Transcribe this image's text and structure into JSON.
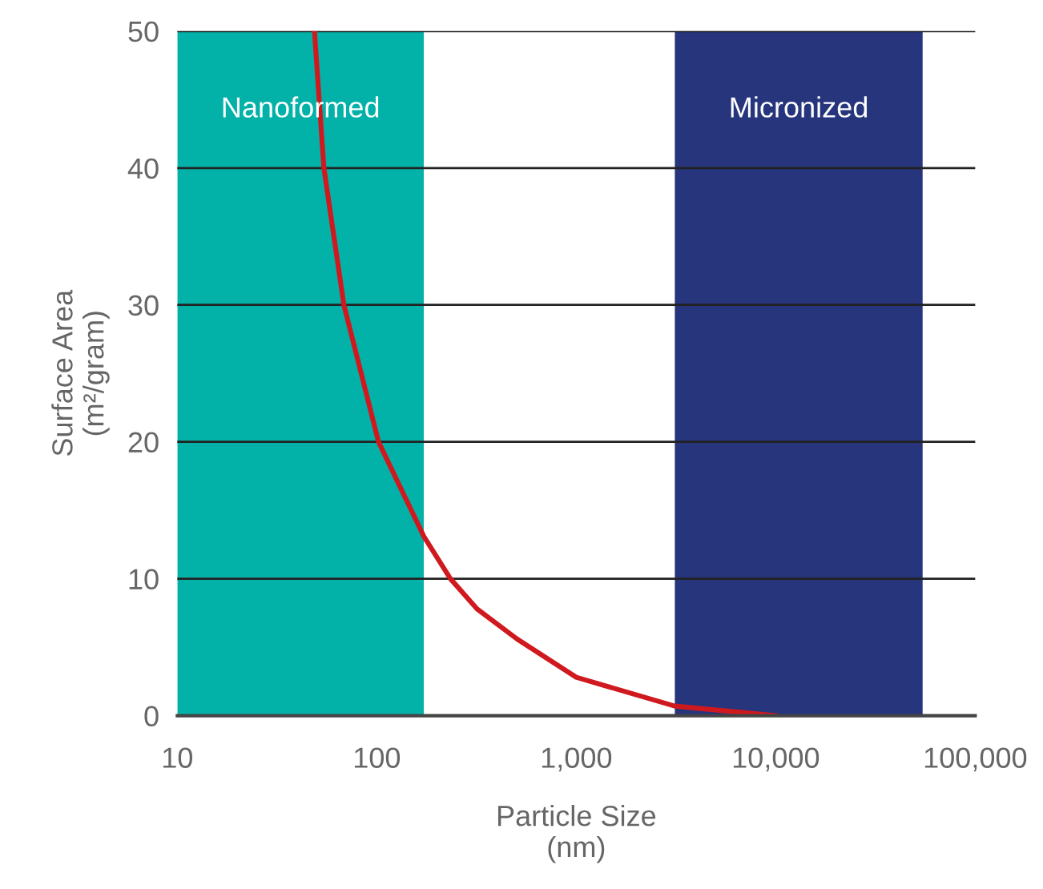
{
  "chart_data": {
    "type": "line",
    "xlabel": "Particle Size\n(nm)",
    "ylabel": "Surface Area\n(m²/gram)",
    "x": [
      48.7,
      54.3,
      68.4,
      102,
      172,
      234,
      318,
      505,
      1000,
      3120,
      10000
    ],
    "series": [
      {
        "color": "#d0191f",
        "values": [
          50,
          40,
          30,
          20,
          13.1,
          10,
          7.8,
          5.6,
          2.8,
          0.7,
          0
        ]
      }
    ],
    "log": "x",
    "xlim": [
      10,
      100000
    ],
    "ylim": [
      0,
      50
    ],
    "xticks": [
      {
        "value": 10,
        "label": "10"
      },
      {
        "value": 100,
        "label": "100"
      },
      {
        "value": 1000,
        "label": "1,000"
      },
      {
        "value": 10000,
        "label": "10,000"
      },
      {
        "value": 100000,
        "label": "100,000"
      }
    ],
    "yticks": [
      0,
      10,
      20,
      30,
      40,
      50
    ],
    "grid": "y",
    "bands": [
      {
        "axis": "x",
        "from": 10,
        "to": 172,
        "label": "Nanoformed",
        "color": "#02b2a9"
      },
      {
        "axis": "x",
        "from": 3120,
        "to": 54500,
        "label": "Micronized",
        "color": "#27357c"
      }
    ]
  }
}
